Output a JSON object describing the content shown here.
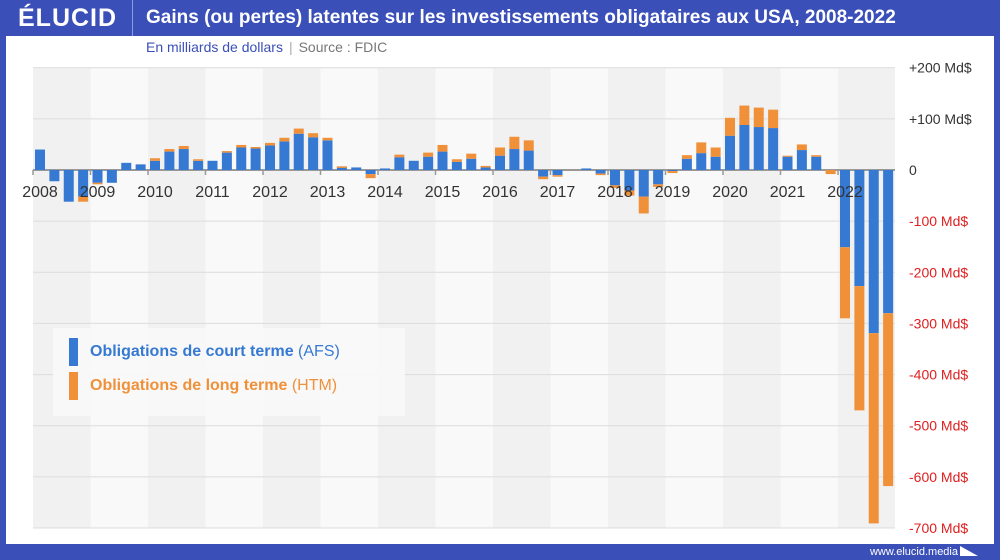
{
  "header": {
    "logo": "ÉLUCID",
    "title": "Gains (ou pertes) latentes sur les investissements obligataires aux USA, 2008-2022",
    "unit": "En milliards de dollars",
    "source": "Source : FDIC"
  },
  "footer": {
    "url": "www.elucid.media"
  },
  "colors": {
    "afs": "#3579d3",
    "htm": "#f0913a",
    "frame": "#3a4fb8",
    "negative_tick": "#e02020"
  },
  "chart_data": {
    "type": "bar",
    "stacked": true,
    "title": "Gains (ou pertes) latentes sur les investissements obligataires aux USA, 2008-2022",
    "ylabel": "En milliards de dollars",
    "ylim": [
      -700,
      200
    ],
    "yticks": [
      {
        "value": 200,
        "label": "+200 Md$"
      },
      {
        "value": 100,
        "label": "+100 Md$"
      },
      {
        "value": 0,
        "label": "0"
      },
      {
        "value": -100,
        "label": "-100 Md$"
      },
      {
        "value": -200,
        "label": "-200 Md$"
      },
      {
        "value": -300,
        "label": "-300 Md$"
      },
      {
        "value": -400,
        "label": "-400 Md$"
      },
      {
        "value": -500,
        "label": "-500 Md$"
      },
      {
        "value": -600,
        "label": "-600 Md$"
      },
      {
        "value": -700,
        "label": "-700 Md$"
      }
    ],
    "xticks": [
      "2008",
      "2009",
      "2010",
      "2011",
      "2012",
      "2013",
      "2014",
      "2015",
      "2016",
      "2017",
      "2018",
      "2019",
      "2020",
      "2021",
      "2022"
    ],
    "legend_position": "bottom-left",
    "series": [
      {
        "name": "Obligations de court terme",
        "tag": "(AFS)",
        "values": [
          40,
          -22,
          -62,
          -52,
          -25,
          -25,
          14,
          11,
          18,
          36,
          41,
          18,
          18,
          34,
          44,
          42,
          48,
          56,
          71,
          64,
          58,
          7,
          5,
          -8,
          3,
          25,
          18,
          26,
          36,
          16,
          22,
          5,
          28,
          41,
          38,
          -13,
          -10,
          0,
          3,
          -7,
          -30,
          -40,
          -52,
          -28,
          -2,
          22,
          33,
          26,
          67,
          88,
          84,
          82,
          26,
          39,
          26,
          0,
          -151,
          -227,
          -319,
          -280
        ]
      },
      {
        "name": "Obligations de long terme",
        "tag": "(HTM)",
        "values": [
          0,
          0,
          0,
          -10,
          -3,
          0,
          0,
          0,
          5,
          5,
          6,
          3,
          0,
          3,
          5,
          3,
          5,
          7,
          10,
          8,
          5,
          -3,
          0,
          -8,
          0,
          5,
          0,
          8,
          13,
          5,
          10,
          3,
          16,
          24,
          20,
          -5,
          -3,
          0,
          0,
          -3,
          -5,
          -10,
          -33,
          -5,
          -4,
          7,
          21,
          18,
          35,
          38,
          38,
          36,
          2,
          11,
          3,
          -8,
          -139,
          -243,
          -372,
          -338
        ]
      }
    ]
  }
}
